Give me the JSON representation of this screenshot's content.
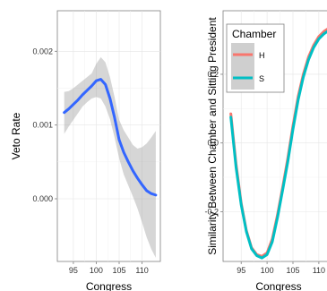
{
  "chart_data": [
    {
      "type": "line",
      "xlabel": "Congress",
      "ylabel": "Veto Rate",
      "xlim": [
        91.5,
        114
      ],
      "ylim": [
        -0.00085,
        0.00255
      ],
      "xticks": [
        95,
        100,
        105,
        110
      ],
      "yticks": [
        0.0,
        0.001,
        0.002
      ],
      "ytick_labels": [
        "0.000",
        "0.001",
        "0.002"
      ],
      "grid": true,
      "series": [
        {
          "color": "#3366ff",
          "x": [
            93,
            94,
            95,
            96,
            97,
            98,
            99,
            100,
            101,
            102,
            103,
            104,
            105,
            106,
            107,
            108,
            109,
            110,
            111,
            112,
            113
          ],
          "y": [
            0.00117,
            0.00122,
            0.00128,
            0.00134,
            0.00141,
            0.00147,
            0.00153,
            0.0016,
            0.00162,
            0.00155,
            0.00136,
            0.0011,
            0.0008,
            0.00063,
            0.0005,
            0.00038,
            0.00028,
            0.00019,
            0.00011,
            7e-05,
            5e-05
          ],
          "ci_lower": [
            0.00088,
            0.00098,
            0.00107,
            0.00116,
            0.00125,
            0.00131,
            0.00136,
            0.00138,
            0.00136,
            0.00125,
            0.00108,
            0.00083,
            0.00055,
            0.00033,
            0.00018,
            3e-05,
            -0.00013,
            -0.00032,
            -0.00052,
            -0.00068,
            -0.0008
          ],
          "ci_upper": [
            0.00145,
            0.00146,
            0.0015,
            0.00155,
            0.0016,
            0.00165,
            0.0017,
            0.00183,
            0.00192,
            0.00185,
            0.00165,
            0.00138,
            0.00107,
            0.00093,
            0.00083,
            0.00073,
            0.00068,
            0.0007,
            0.00075,
            0.00083,
            0.00092
          ]
        }
      ]
    },
    {
      "type": "line",
      "xlabel": "Congress",
      "ylabel": "Similarity Between Chamber and Sitting President",
      "xlim": [
        91.5,
        114
      ],
      "ylim": [
        -0.345,
        0.385
      ],
      "xticks": [
        95,
        100,
        105,
        110
      ],
      "yticks": [
        -0.2,
        0.0,
        0.2
      ],
      "ytick_labels": [
        "-0.2",
        "0.0",
        "0.2"
      ],
      "grid": true,
      "legend": {
        "title": "Chamber",
        "placement": "top-left",
        "items": [
          {
            "label": "H",
            "color": "#f8766d"
          },
          {
            "label": "S",
            "color": "#00bfc4"
          }
        ]
      },
      "series": [
        {
          "name": "H",
          "color": "#f8766d",
          "x": [
            93,
            94,
            95,
            96,
            97,
            98,
            99,
            100,
            101,
            102,
            103,
            104,
            105,
            106,
            107,
            108,
            109,
            110,
            111,
            112,
            113
          ],
          "y": [
            0.085,
            -0.06,
            -0.175,
            -0.255,
            -0.305,
            -0.325,
            -0.33,
            -0.32,
            -0.28,
            -0.21,
            -0.13,
            -0.045,
            0.05,
            0.135,
            0.2,
            0.25,
            0.285,
            0.31,
            0.325,
            0.335,
            0.345
          ]
        },
        {
          "name": "S",
          "color": "#00bfc4",
          "x": [
            93,
            94,
            95,
            96,
            97,
            98,
            99,
            100,
            101,
            102,
            103,
            104,
            105,
            106,
            107,
            108,
            109,
            110,
            111,
            112,
            113
          ],
          "y": [
            0.075,
            -0.07,
            -0.18,
            -0.258,
            -0.308,
            -0.328,
            -0.335,
            -0.325,
            -0.288,
            -0.218,
            -0.138,
            -0.055,
            0.04,
            0.125,
            0.192,
            0.242,
            0.278,
            0.303,
            0.318,
            0.328,
            0.338
          ]
        }
      ]
    }
  ]
}
